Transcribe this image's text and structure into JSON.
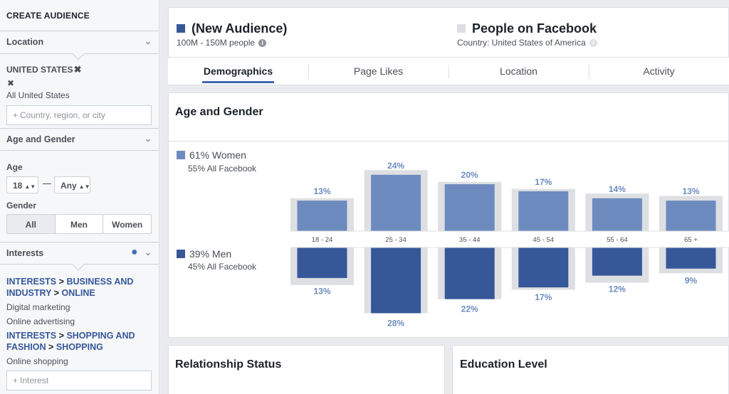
{
  "sidebar": {
    "header": "CREATE AUDIENCE",
    "location": {
      "section": "Location",
      "country": "UNITED STATES",
      "scope": "All United States",
      "placeholder": "Country, region, or city"
    },
    "age_gender": {
      "section": "Age and Gender",
      "age_label": "Age",
      "age_min": "18",
      "age_max": "Any",
      "gender_label": "Gender",
      "gender_options": [
        "All",
        "Men",
        "Women"
      ],
      "gender_selected": "All"
    },
    "interests": {
      "section": "Interests",
      "groups": [
        {
          "path": [
            "INTERESTS",
            "BUSINESS AND INDUSTRY",
            "ONLINE"
          ],
          "items": [
            "Digital marketing",
            "Online advertising"
          ]
        },
        {
          "path": [
            "INTERESTS",
            "SHOPPING AND FASHION",
            "SHOPPING"
          ],
          "items": [
            "Online shopping"
          ]
        }
      ],
      "placeholder": "Interest"
    }
  },
  "audience": {
    "name": "(New Audience)",
    "size": "100M - 150M people",
    "color": "#365899"
  },
  "comparison": {
    "name": "People on Facebook",
    "country": "Country: United States of America",
    "color": "#dddfe2"
  },
  "tabs": [
    "Demographics",
    "Page Likes",
    "Location",
    "Activity"
  ],
  "active_tab": "Demographics",
  "age_gender_card": {
    "title": "Age and Gender",
    "women_label": "61% Women",
    "women_sub": "55% All Facebook",
    "men_label": "39% Men",
    "men_sub": "45% All Facebook",
    "women_color": "#6d8bbf",
    "men_color": "#365899",
    "baseline_color": "#dddfe2"
  },
  "chart_data": {
    "type": "bar",
    "categories": [
      "18 - 24",
      "25 - 34",
      "35 - 44",
      "45 - 54",
      "55 - 64",
      "65 +"
    ],
    "series": [
      {
        "name": "Women",
        "values": [
          13,
          24,
          20,
          17,
          14,
          13
        ],
        "labels": [
          "13%",
          "24%",
          "20%",
          "17%",
          "14%",
          "13%"
        ],
        "facebook_values": [
          14,
          26,
          21,
          18,
          16,
          15
        ]
      },
      {
        "name": "Men",
        "values": [
          13,
          28,
          22,
          17,
          12,
          9
        ],
        "labels": [
          "13%",
          "28%",
          "22%",
          "17%",
          "12%",
          "9%"
        ],
        "facebook_values": [
          16,
          28,
          22,
          18,
          15,
          11
        ]
      }
    ]
  },
  "relationship_card": {
    "title": "Relationship Status"
  },
  "education_card": {
    "title": "Education Level"
  }
}
